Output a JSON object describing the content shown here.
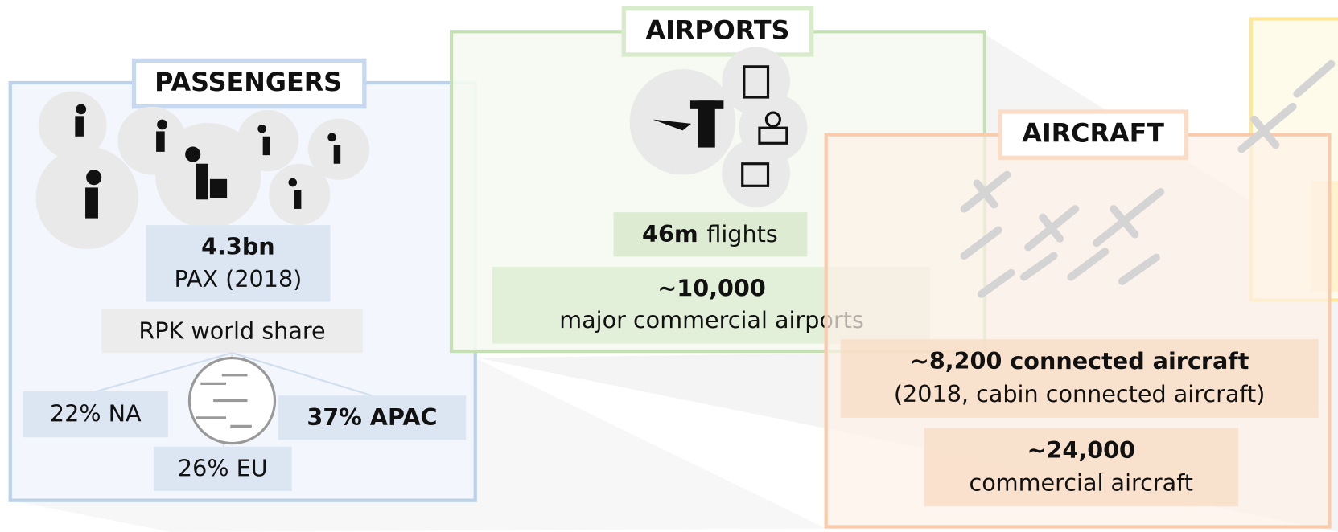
{
  "passengers": {
    "title": "PASSENGERS",
    "total": {
      "value": "4.3bn",
      "label": "PAX (2018)"
    },
    "share_title": "RPK world share",
    "shares": [
      "22% NA",
      "37% APAC",
      "26% EU"
    ]
  },
  "airports": {
    "title": "AIRPORTS",
    "flights": {
      "value": "46m",
      "label": "flights"
    },
    "count": {
      "value": "~10,000",
      "label": "major commercial airports"
    }
  },
  "aircraft": {
    "title": "AIRCRAFT",
    "connected": {
      "value": "~8,200 connected aircraft",
      "label": "(2018, cabin connected aircraft)"
    },
    "commercial": {
      "value": "~24,000",
      "label": "commercial aircraft"
    }
  }
}
